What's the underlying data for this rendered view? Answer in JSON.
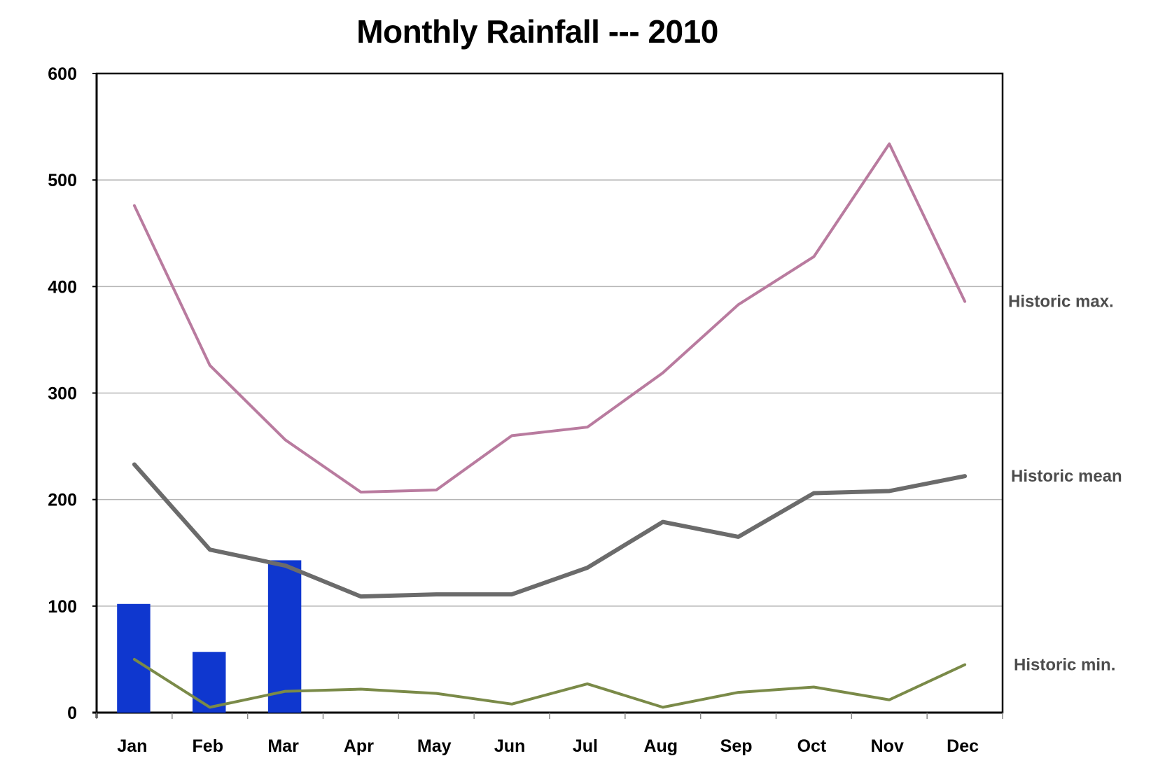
{
  "chart_data": {
    "type": "bar",
    "title": "Monthly Rainfall --- 2010",
    "xlabel": "",
    "ylabel": "",
    "ylim": [
      0,
      600
    ],
    "yticks": [
      "0",
      "100",
      "200",
      "300",
      "400",
      "500",
      "600"
    ],
    "categories": [
      "Jan",
      "Feb",
      "Mar",
      "Apr",
      "May",
      "Jun",
      "Jul",
      "Aug",
      "Sep",
      "Oct",
      "Nov",
      "Dec"
    ],
    "grid": true,
    "bars": {
      "color": "#0f37cf",
      "values": [
        102,
        57,
        143,
        null,
        null,
        null,
        null,
        null,
        null,
        null,
        null,
        null
      ]
    },
    "series": [
      {
        "name": "Historic max.",
        "type": "line",
        "color": "#b97b9f",
        "values": [
          476,
          326,
          256,
          207,
          209,
          260,
          268,
          319,
          383,
          428,
          534,
          386
        ]
      },
      {
        "name": "Historic mean",
        "type": "line",
        "color": "#6b6b6b",
        "values": [
          233,
          153,
          138,
          109,
          111,
          111,
          136,
          179,
          165,
          206,
          208,
          222
        ]
      },
      {
        "name": "Historic min.",
        "type": "line",
        "color": "#7a8a48",
        "values": [
          50,
          5,
          20,
          22,
          18,
          8,
          27,
          5,
          19,
          24,
          12,
          45
        ]
      }
    ]
  }
}
